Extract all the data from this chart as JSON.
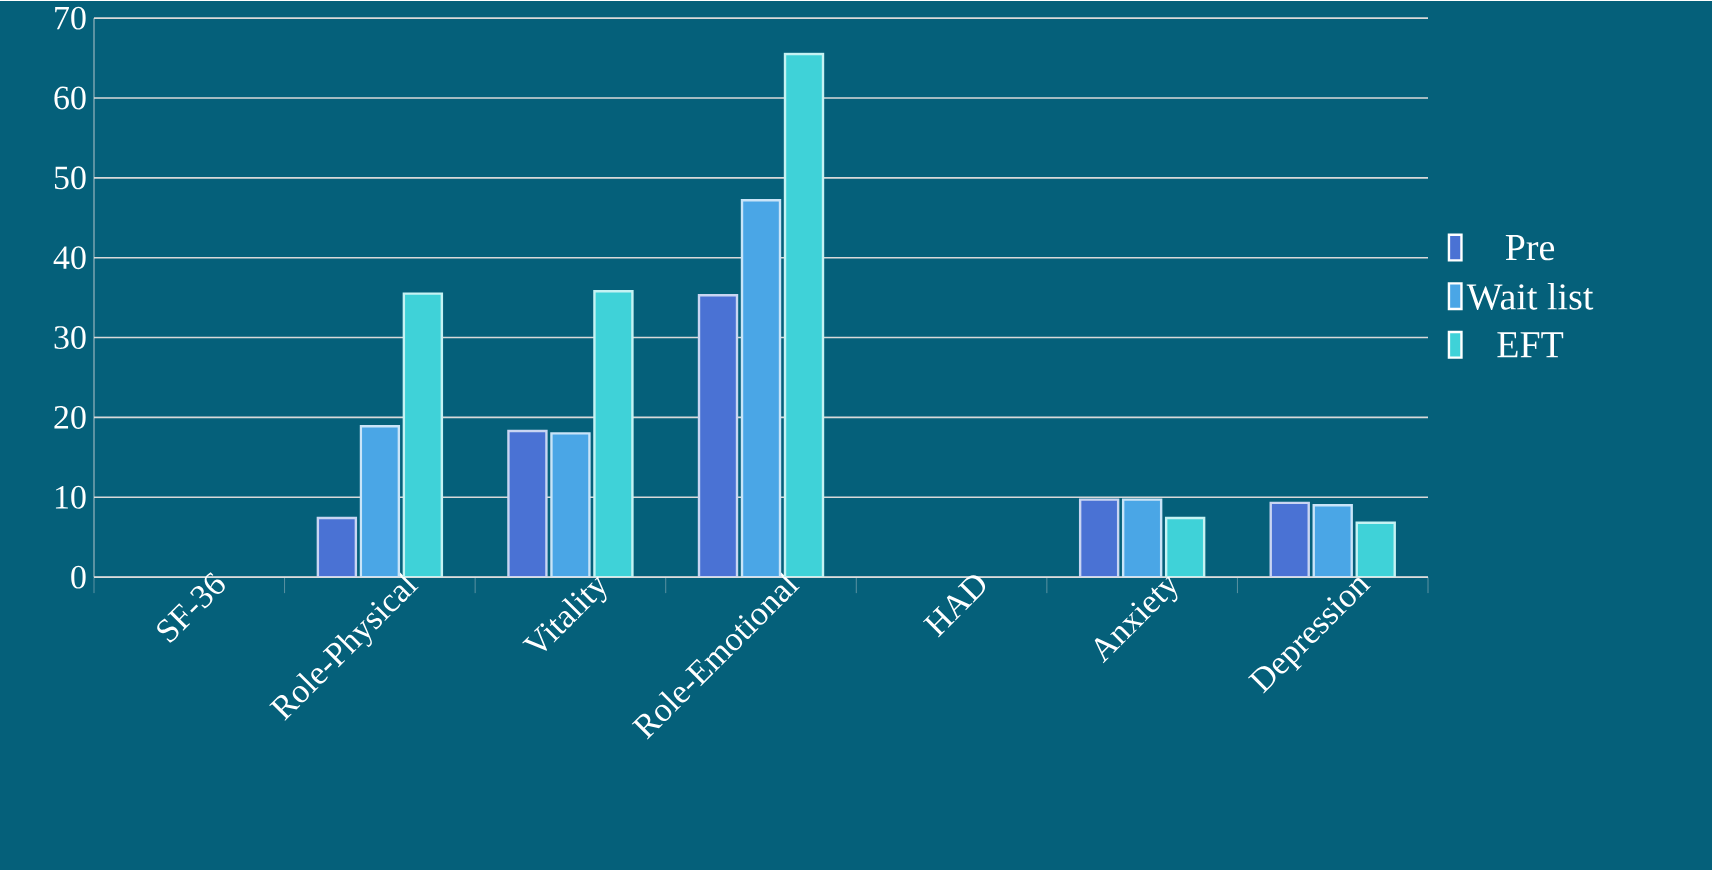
{
  "chart_data": {
    "type": "bar",
    "categories": [
      "SF-36",
      "Role-Physical",
      "Vitality",
      "Role-Emotional",
      "HAD",
      "Anxiety",
      "Depression"
    ],
    "series": [
      {
        "name": "Pre",
        "color": "#4a72d4",
        "values": [
          null,
          7.4,
          18.3,
          35.3,
          null,
          9.7,
          9.3
        ]
      },
      {
        "name": "Wait list",
        "color": "#4aa6e6",
        "values": [
          null,
          18.9,
          18.0,
          47.2,
          null,
          9.7,
          9.0
        ]
      },
      {
        "name": "EFT",
        "color": "#3fd2d8",
        "values": [
          null,
          35.5,
          35.8,
          65.5,
          null,
          7.4,
          6.8
        ]
      }
    ],
    "ylim": [
      0,
      70
    ],
    "yticks": [
      0,
      10,
      20,
      30,
      40,
      50,
      60,
      70
    ],
    "grid": "y",
    "legend": "right"
  }
}
